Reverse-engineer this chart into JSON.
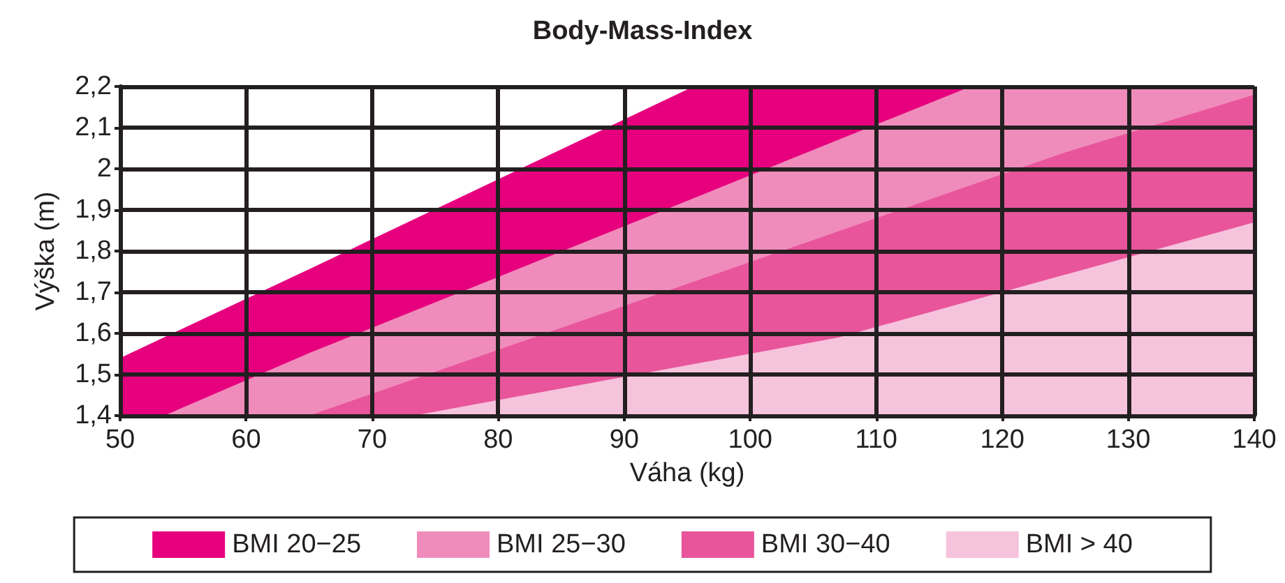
{
  "chart_data": {
    "type": "area",
    "title": "Body-Mass-Index",
    "xlabel": "Váha (kg)",
    "ylabel": "Výška (m)",
    "xlim": [
      50,
      140
    ],
    "xticks": [
      50,
      60,
      70,
      80,
      90,
      100,
      110,
      120,
      130,
      140
    ],
    "ylim": [
      1.4,
      2.2
    ],
    "yticks": [
      {
        "value": 1.4,
        "label": "1,4"
      },
      {
        "value": 1.5,
        "label": "1,5"
      },
      {
        "value": 1.6,
        "label": "1,6"
      },
      {
        "value": 1.7,
        "label": "1,7"
      },
      {
        "value": 1.8,
        "label": "1,8"
      },
      {
        "value": 1.9,
        "label": "1,9"
      },
      2,
      {
        "value": 2.1,
        "label": "2,1"
      },
      {
        "value": 2.2,
        "label": "2,2"
      }
    ],
    "series": [
      {
        "name": "BMI 20−25",
        "color": "#e6007e",
        "x": [
          50,
          65,
          95.5,
          140
        ],
        "values": [
          1.54,
          1.756,
          2.2,
          2.2
        ]
      },
      {
        "name": "BMI 25−30",
        "color": "#f08cbb",
        "x": [
          53.5,
          65,
          117.5,
          140
        ],
        "values": [
          1.4,
          1.552,
          2.2,
          2.2
        ]
      },
      {
        "name": "BMI 30−40",
        "color": "#e8559b",
        "x": [
          65,
          125,
          140
        ],
        "values": [
          1.4,
          2.04,
          2.18
        ]
      },
      {
        "name": "BMI > 40",
        "color": "#f6c3dc",
        "x": [
          73.3,
          107,
          140
        ],
        "values": [
          1.4,
          1.59,
          1.87
        ]
      }
    ],
    "grid": true,
    "legend": "bottom",
    "marker": "none"
  }
}
